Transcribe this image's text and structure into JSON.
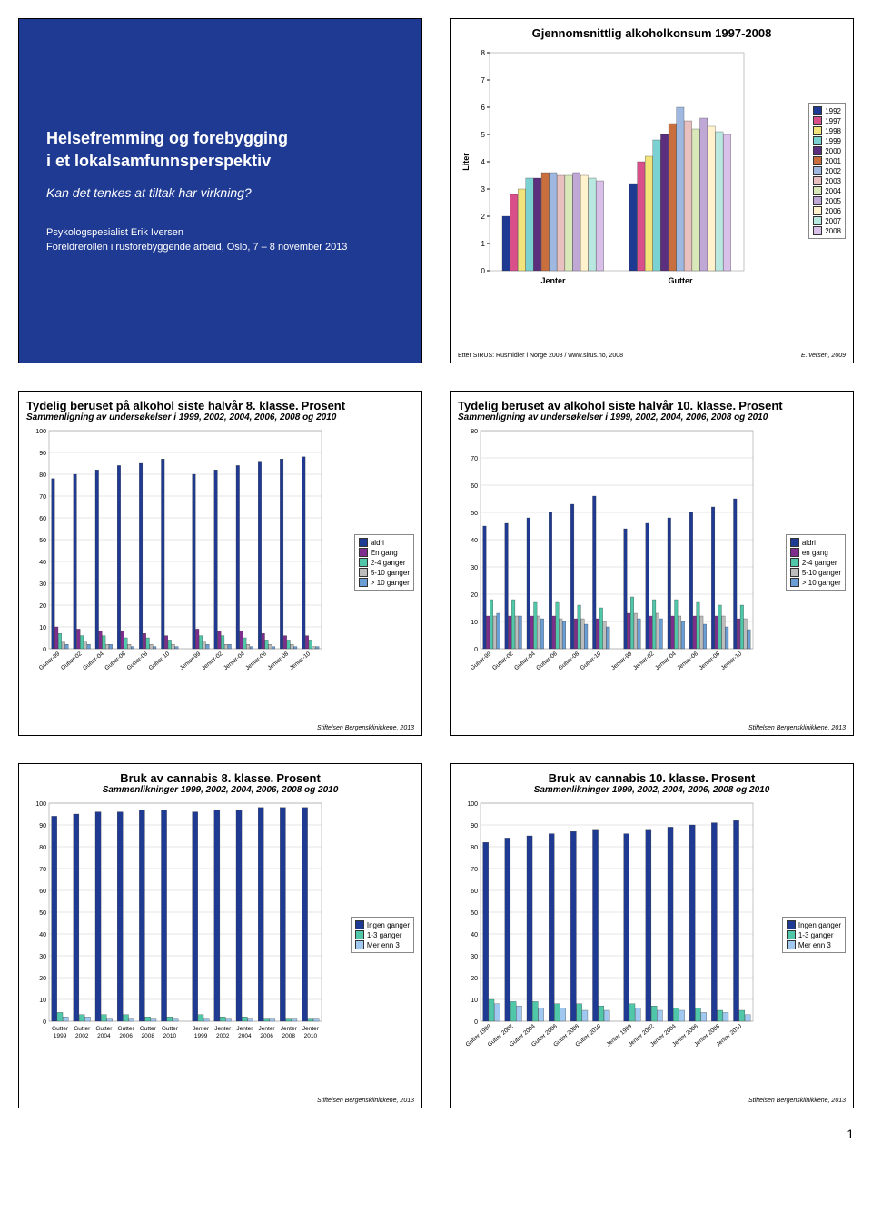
{
  "page_number": "1",
  "slide1": {
    "title_l1": "Helsefremming og forebygging",
    "title_l2": "i et lokalsamfunnsperspektiv",
    "subtitle": "Kan det tenkes at tiltak har virkning?",
    "author": "Psykologspesialist Erik Iversen",
    "conference": "Foreldrerollen i rusforebyggende arbeid, Oslo, 7 – 8 november 2013"
  },
  "slide2": {
    "title": "Gjennomsnittlig alkoholkonsum 1997-2008",
    "ylabel": "Liter",
    "xcats": [
      "Jenter",
      "Gutter"
    ],
    "source": "Etter SIRUS: Rusmidler i Norge 2008 / www.sirus.no, 2008",
    "credit": "E.Iversen, 2009",
    "years": [
      "1992",
      "1997",
      "1998",
      "1999",
      "2000",
      "2001",
      "2002",
      "2003",
      "2004",
      "2005",
      "2006",
      "2007",
      "2008"
    ],
    "year_colors": [
      "#1f3a93",
      "#d94f8a",
      "#f2e47b",
      "#7ad1d1",
      "#5b2e7e",
      "#c96f3d",
      "#9fb8e0",
      "#e8c0c0",
      "#d9e8b8",
      "#bfa8d6",
      "#fff2cc",
      "#b8e8e0",
      "#d8c0e8"
    ],
    "ylim": [
      0,
      8
    ],
    "ytick": 1,
    "values": {
      "Jenter": [
        2.0,
        2.8,
        3.0,
        3.4,
        3.4,
        3.6,
        3.6,
        3.5,
        3.5,
        3.6,
        3.5,
        3.4,
        3.3
      ],
      "Gutter": [
        3.2,
        4.0,
        4.2,
        4.8,
        5.0,
        5.4,
        6.0,
        5.5,
        5.2,
        5.6,
        5.3,
        5.1,
        5.0
      ]
    }
  },
  "beruset_legend": {
    "labels": [
      "aldri",
      "En gang",
      "2-4 ganger",
      "5-10 ganger",
      "> 10 ganger"
    ],
    "labels_lc": [
      "aldri",
      "en gang",
      "2-4 ganger",
      "5-10 ganger",
      "> 10 ganger"
    ],
    "colors": [
      "#1f3a93",
      "#7f2e8e",
      "#4fc7a8",
      "#bdbdbd",
      "#6a9ed4"
    ]
  },
  "slide3": {
    "title": "Tydelig beruset på alkohol siste halvår 8. klasse.",
    "title_small": "Prosent",
    "subtitle": "Sammenligning av undersøkelser i 1999, 2002, 2004, 2006, 2008 og 2010",
    "footer": "Stiftelsen Bergensklinikkene, 2013",
    "ylim": [
      0,
      100
    ],
    "ytick": 10,
    "xcats": [
      "Gutter-99",
      "Gutter-02",
      "Gutter-04",
      "Gutter-06",
      "Gutter-08",
      "Gutter-10",
      "Jenter-99",
      "Jenter-02",
      "Jenter-04",
      "Jenter-06",
      "Jenter-08",
      "Jenter-10"
    ],
    "gap_after": 5,
    "values": [
      [
        78,
        10,
        7,
        3,
        2
      ],
      [
        80,
        9,
        6,
        3,
        2
      ],
      [
        82,
        8,
        6,
        2,
        2
      ],
      [
        84,
        8,
        5,
        2,
        1
      ],
      [
        85,
        7,
        5,
        2,
        1
      ],
      [
        87,
        6,
        4,
        2,
        1
      ],
      [
        80,
        9,
        6,
        3,
        2
      ],
      [
        82,
        8,
        6,
        2,
        2
      ],
      [
        84,
        8,
        5,
        2,
        1
      ],
      [
        86,
        7,
        4,
        2,
        1
      ],
      [
        87,
        6,
        4,
        2,
        1
      ],
      [
        88,
        6,
        4,
        1,
        1
      ]
    ]
  },
  "slide4": {
    "title": "Tydelig beruset av alkohol siste halvår 10. klasse.",
    "title_small": "Prosent",
    "subtitle": "Sammenligning av undersøkelser i 1999, 2002, 2004, 2006, 2008 og 2010",
    "footer": "Stiftelsen Bergensklinikkene, 2013",
    "ylim": [
      0,
      80
    ],
    "ytick": 10,
    "xcats": [
      "Gutter-99",
      "Gutter-02",
      "Gutter-04",
      "Gutter-06",
      "Gutter-08",
      "Gutter-10",
      "Jenter-99",
      "Jenter-02",
      "Jenter-04",
      "Jenter-06",
      "Jenter-08",
      "Jenter-10"
    ],
    "gap_after": 5,
    "values": [
      [
        45,
        12,
        18,
        12,
        13
      ],
      [
        46,
        12,
        18,
        12,
        12
      ],
      [
        48,
        12,
        17,
        12,
        11
      ],
      [
        50,
        12,
        17,
        11,
        10
      ],
      [
        53,
        11,
        16,
        11,
        9
      ],
      [
        56,
        11,
        15,
        10,
        8
      ],
      [
        44,
        13,
        19,
        13,
        11
      ],
      [
        46,
        12,
        18,
        13,
        11
      ],
      [
        48,
        12,
        18,
        12,
        10
      ],
      [
        50,
        12,
        17,
        12,
        9
      ],
      [
        52,
        12,
        16,
        12,
        8
      ],
      [
        55,
        11,
        16,
        11,
        7
      ]
    ]
  },
  "cannabis_legend": {
    "labels": [
      "Ingen ganger",
      "1-3 ganger",
      "Mer enn 3"
    ],
    "colors": [
      "#1f3a93",
      "#4fc7a8",
      "#a0c8f0"
    ]
  },
  "slide5": {
    "title": "Bruk av cannabis 8. klasse.",
    "title_small": "Prosent",
    "subtitle": "Sammenlikninger 1999, 2002, 2004, 2006, 2008 og 2010",
    "footer": "Stiftelsen Bergensklinikkene, 2013",
    "ylim": [
      0,
      100
    ],
    "ytick": 10,
    "xcats": [
      "Gutter 1999",
      "Gutter 2002",
      "Gutter 2004",
      "Gutter 2006",
      "Gutter 2008",
      "Gutter 2010",
      "Jenter 1999",
      "Jenter 2002",
      "Jenter 2004",
      "Jenter 2006",
      "Jenter 2008",
      "Jenter 2010"
    ],
    "gap_after": 5,
    "label_style": "wrap",
    "values": [
      [
        94,
        4,
        2
      ],
      [
        95,
        3,
        2
      ],
      [
        96,
        3,
        1
      ],
      [
        96,
        3,
        1
      ],
      [
        97,
        2,
        1
      ],
      [
        97,
        2,
        1
      ],
      [
        96,
        3,
        1
      ],
      [
        97,
        2,
        1
      ],
      [
        97,
        2,
        1
      ],
      [
        98,
        1,
        1
      ],
      [
        98,
        1,
        1
      ],
      [
        98,
        1,
        1
      ]
    ]
  },
  "slide6": {
    "title": "Bruk av cannabis 10. klasse.",
    "title_small": "Prosent",
    "subtitle": "Sammenlikninger 1999, 2002, 2004, 2006, 2008 og 2010",
    "footer": "Stiftelsen Bergensklinikkene, 2013",
    "ylim": [
      0,
      100
    ],
    "ytick": 10,
    "xcats": [
      "Gutter 1999",
      "Gutter 2002",
      "Gutter 2004",
      "Gutter 2006",
      "Gutter 2008",
      "Gutter 2010",
      "Jenter 1999",
      "Jenter 2002",
      "Jenter 2004",
      "Jenter 2006",
      "Jenter 2008",
      "Jenter 2010"
    ],
    "gap_after": 5,
    "label_style": "rotate",
    "values": [
      [
        82,
        10,
        8
      ],
      [
        84,
        9,
        7
      ],
      [
        85,
        9,
        6
      ],
      [
        86,
        8,
        6
      ],
      [
        87,
        8,
        5
      ],
      [
        88,
        7,
        5
      ],
      [
        86,
        8,
        6
      ],
      [
        88,
        7,
        5
      ],
      [
        89,
        6,
        5
      ],
      [
        90,
        6,
        4
      ],
      [
        91,
        5,
        4
      ],
      [
        92,
        5,
        3
      ]
    ]
  }
}
